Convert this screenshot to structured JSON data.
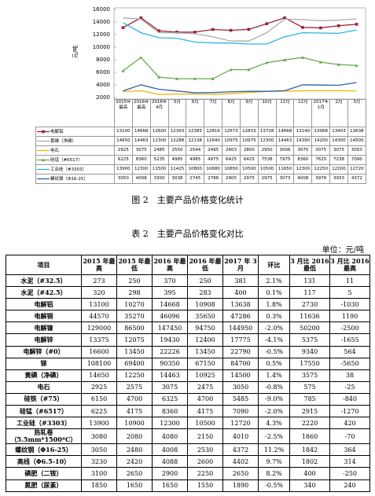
{
  "chart_data": {
    "type": "line",
    "y_label": "元/吨",
    "categories": [
      "2015年最高",
      "2016年最高",
      "2016年4月",
      "5月",
      "6月",
      "7月",
      "8月",
      "9月",
      "10月",
      "11月",
      "12月",
      "2017年1月",
      "2月",
      "3月"
    ],
    "series": [
      {
        "name": "电解铝",
        "color": "#9b2335",
        "marker": "square",
        "values": [
          13100,
          14668,
          12600,
          12393,
          12385,
          12816,
          12673,
          12833,
          13728,
          14668,
          13140,
          13068,
          13403,
          13638
        ]
      },
      {
        "name": "黄磷（净磷）",
        "color": "#aaaaaa",
        "marker": "none",
        "values": [
          14650,
          14463,
          12300,
          12288,
          12138,
          11640,
          10975,
          10975,
          12300,
          14463,
          14390,
          14200,
          14300,
          14500
        ]
      },
      {
        "name": "电石",
        "color": "#f0b400",
        "marker": "none",
        "values": [
          2925,
          3075,
          2485,
          2550,
          2544,
          2495,
          2603,
          2800,
          2950,
          3006,
          3075,
          3075,
          3075,
          3050
        ]
      },
      {
        "name": "硅锰（#6517）",
        "color": "#6aa84f",
        "marker": "triangle",
        "values": [
          6225,
          8360,
          5235,
          4985,
          4985,
          4975,
          6425,
          6425,
          7538,
          7975,
          8360,
          7625,
          7238,
          7090
        ]
      },
      {
        "name": "工业硅（#3303）",
        "color": "#2fb5e0",
        "marker": "none",
        "values": [
          13900,
          12300,
          11500,
          11425,
          10800,
          10680,
          10650,
          10500,
          10500,
          11650,
          12300,
          12250,
          12200,
          12720
        ]
      },
      {
        "name": "螺纹钢（Φ16-25）",
        "color": "#2e5fa8",
        "marker": "none",
        "values": [
          3050,
          4008,
          3300,
          3038,
          2745,
          2788,
          2905,
          2975,
          2975,
          3073,
          4008,
          3978,
          3933,
          4372
        ]
      }
    ],
    "ylim": [
      2000,
      16000
    ],
    "yticks": [
      2000,
      4000,
      6000,
      8000,
      10000,
      12000,
      14000,
      16000
    ],
    "grid": false
  },
  "caption": "图 2　主要产品价格变化统计",
  "table": {
    "title": "表 2　主要产品价格变化对比",
    "unit": "单位：元/吨",
    "header": [
      "项目",
      "2015 年最高",
      "2015 年最低",
      "2016 年最高",
      "2016 年最低",
      "2017 年 3月",
      "环比",
      "3 月比 2016 最低",
      "3 月比 2016 最高"
    ],
    "rows": [
      [
        "水泥（#32.5）",
        "273",
        "250",
        "370",
        "250",
        "381",
        "2.1%",
        "131",
        "11"
      ],
      [
        "水泥（#42.5）",
        "320",
        "298",
        "395",
        "283",
        "400",
        "0.1%",
        "117",
        "5"
      ],
      [
        "电解铝",
        "13100",
        "10270",
        "14668",
        "10908",
        "13638",
        "1.8%",
        "2730",
        "-1030"
      ],
      [
        "电解铜",
        "44570",
        "35270",
        "46096",
        "35650",
        "47286",
        "0.3%",
        "11636",
        "1190"
      ],
      [
        "电解镍",
        "129000",
        "86500",
        "147450",
        "94750",
        "144950",
        "-2.0%",
        "50200",
        "-2500"
      ],
      [
        "电解锌",
        "13375",
        "12075",
        "19430",
        "12400",
        "17775",
        "-4.1%",
        "5375",
        "-1655"
      ],
      [
        "电解锌（#0）",
        "16600",
        "13450",
        "22226",
        "13450",
        "22790",
        "-0.5%",
        "9340",
        "564"
      ],
      [
        "锑",
        "108100",
        "69400",
        "90350",
        "67150",
        "84700",
        "0.5%",
        "17550",
        "-5650"
      ],
      [
        "黄磷（净磷）",
        "14650",
        "12250",
        "14463",
        "10925",
        "14500",
        "1.4%",
        "3575",
        "38"
      ],
      [
        "电石",
        "2925",
        "2575",
        "3075",
        "2475",
        "3050",
        "-0.8%",
        "575",
        "-25"
      ],
      [
        "硅铁（#75）",
        "6150",
        "4700",
        "6325",
        "4700",
        "5485",
        "-9.0%",
        "785",
        "-840"
      ],
      [
        "硅锰（#6517）",
        "6225",
        "4175",
        "8360",
        "4175",
        "7090",
        "-2.0%",
        "2915",
        "-1270"
      ],
      [
        "工业硅（#3303）",
        "13900",
        "10900",
        "12300",
        "10500",
        "12720",
        "4.3%",
        "2220",
        "420"
      ],
      [
        "热轧卷（5.5mm*1500*C）",
        "3080",
        "2080",
        "4080",
        "2150",
        "4010",
        "-2.5%",
        "1860",
        "-70"
      ],
      [
        "螺纹钢（Φ16-25）",
        "3050",
        "2480",
        "4008",
        "2530",
        "4372",
        "11.2%",
        "1842",
        "364"
      ],
      [
        "高线（Φ6.5-10）",
        "3230",
        "2420",
        "4088",
        "2600",
        "4402",
        "9.7%",
        "1802",
        "314"
      ],
      [
        "磷肥（二铵）",
        "3100",
        "2650",
        "2900",
        "2250",
        "2650",
        "8.2%",
        "400",
        "-250"
      ],
      [
        "氮肥（尿素）",
        "1850",
        "1650",
        "1650",
        "1550",
        "1890",
        "-0.5%",
        "340",
        "240"
      ]
    ]
  }
}
